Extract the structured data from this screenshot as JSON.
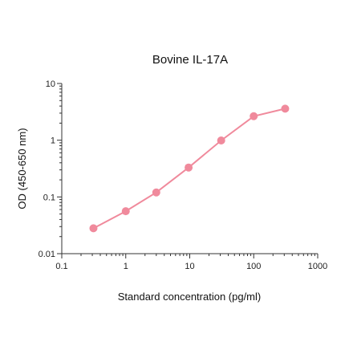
{
  "chart_data": {
    "type": "line",
    "title": "Bovine IL-17A",
    "xlabel": "Standard concentration (pg/ml)",
    "ylabel": "OD (450-650 nm)",
    "x_scale": "log",
    "y_scale": "log",
    "xlim": [
      0.1,
      1000
    ],
    "ylim": [
      0.01,
      10
    ],
    "x_ticks": [
      0.1,
      1,
      10,
      100,
      1000
    ],
    "x_tick_labels": [
      "0.1",
      "1",
      "10",
      "100",
      "1000"
    ],
    "y_ticks": [
      0.01,
      0.1,
      1,
      10
    ],
    "y_tick_labels": [
      "0.01",
      "0.1",
      "1",
      "10"
    ],
    "grid": false,
    "legend": "none",
    "series": [
      {
        "color": "#f08a9c",
        "x": [
          0.3125,
          1.0,
          3.0,
          9.6,
          31.0,
          100.0,
          310.0
        ],
        "y": [
          0.028,
          0.056,
          0.12,
          0.33,
          0.99,
          2.65,
          3.6
        ]
      }
    ]
  }
}
